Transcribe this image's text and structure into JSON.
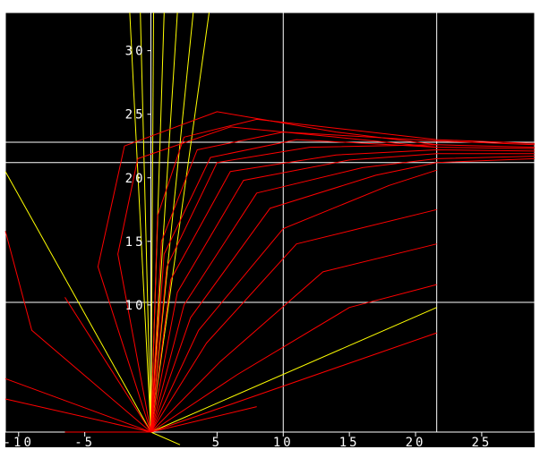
{
  "colors": {
    "background": "#000000",
    "grid": "#ffffff",
    "curves": "#ff0000",
    "lines": "#ffff00",
    "labels": "#ffffff"
  },
  "chart_data": {
    "type": "line",
    "title": "",
    "xlabel": "",
    "ylabel": "",
    "xlim": [
      -11,
      29
    ],
    "ylim": [
      0,
      33
    ],
    "grid": true,
    "legend": "none",
    "x_ticks": [
      -10,
      -5,
      5,
      10,
      15,
      20,
      25
    ],
    "y_ticks": [
      10,
      15,
      20,
      25,
      30
    ],
    "x_tick_labels": [
      "-10",
      "-5",
      "5",
      "10",
      "15",
      "20",
      "25"
    ],
    "y_tick_labels": [
      "10",
      "15",
      "20",
      "25",
      "30"
    ],
    "horizontal_reference_lines": [
      10.2,
      21.2,
      22.8
    ],
    "vertical_reference_lines": [
      10,
      21.6
    ],
    "series": [
      {
        "color": "#ffff00",
        "style": "straight rays from origin",
        "points": [
          [
            [
              0,
              0
            ],
            [
              -11,
              20.5
            ]
          ],
          [
            [
              0,
              0
            ],
            [
              21.6,
              9.8
            ]
          ],
          [
            [
              0,
              0
            ],
            [
              -1.6,
              33
            ]
          ],
          [
            [
              0,
              0
            ],
            [
              -0.8,
              33
            ]
          ],
          [
            [
              0,
              0
            ],
            [
              0.2,
              33
            ]
          ],
          [
            [
              0,
              0
            ],
            [
              1.0,
              33
            ]
          ],
          [
            [
              0,
              0
            ],
            [
              2.0,
              33
            ]
          ],
          [
            [
              0,
              0
            ],
            [
              3.2,
              33
            ]
          ],
          [
            [
              0,
              0
            ],
            [
              4.4,
              33
            ]
          ],
          [
            [
              0,
              0
            ],
            [
              2.2,
              -1
            ]
          ]
        ]
      },
      {
        "color": "#ff0000",
        "style": "trajectory bundle converging near y = 22",
        "points": [
          [
            [
              0,
              0
            ],
            [
              1.5,
              12
            ],
            [
              6,
              20.5
            ],
            [
              14,
              21.8
            ],
            [
              21.6,
              22.2
            ],
            [
              29,
              22.1
            ]
          ],
          [
            [
              0,
              0
            ],
            [
              1.2,
              13
            ],
            [
              5,
              21.2
            ],
            [
              12,
              22.4
            ],
            [
              21.6,
              22.6
            ],
            [
              29,
              22.4
            ]
          ],
          [
            [
              0,
              0
            ],
            [
              2.0,
              11
            ],
            [
              7,
              19.8
            ],
            [
              15,
              21.4
            ],
            [
              21.6,
              21.9
            ],
            [
              29,
              21.9
            ]
          ],
          [
            [
              0,
              0
            ],
            [
              0.8,
              15
            ],
            [
              3.5,
              22.2
            ],
            [
              10,
              23.6
            ],
            [
              21.6,
              22.9
            ],
            [
              29,
              22.6
            ]
          ],
          [
            [
              0,
              0
            ],
            [
              2.5,
              10
            ],
            [
              8,
              18.8
            ],
            [
              16,
              20.8
            ],
            [
              21.6,
              21.5
            ],
            [
              29,
              21.7
            ]
          ],
          [
            [
              0,
              0
            ],
            [
              0.5,
              17
            ],
            [
              2.5,
              23.2
            ],
            [
              8,
              24.6
            ],
            [
              21.6,
              23.0
            ],
            [
              29,
              22.7
            ]
          ],
          [
            [
              0,
              0
            ],
            [
              3.0,
              9
            ],
            [
              9,
              17.6
            ],
            [
              17,
              20.2
            ],
            [
              21.6,
              21.2
            ],
            [
              29,
              21.5
            ]
          ],
          [
            [
              0,
              0
            ],
            [
              1.0,
              14
            ],
            [
              4.5,
              21.6
            ],
            [
              11,
              23.0
            ],
            [
              21.6,
              22.4
            ],
            [
              29,
              22.3
            ]
          ],
          [
            [
              0,
              0
            ],
            [
              -2.5,
              14
            ],
            [
              -1,
              21.5
            ],
            [
              6,
              24.0
            ],
            [
              14,
              23.2
            ],
            [
              21.6,
              22.4
            ]
          ],
          [
            [
              0,
              0
            ],
            [
              -4.0,
              13
            ],
            [
              -2,
              22.5
            ],
            [
              5,
              25.2
            ],
            [
              14,
              23.6
            ],
            [
              21.6,
              22.6
            ]
          ],
          [
            [
              0,
              0
            ],
            [
              3.6,
              8
            ],
            [
              10,
              16
            ],
            [
              18,
              19.4
            ],
            [
              21.6,
              20.6
            ]
          ],
          [
            [
              0,
              0
            ],
            [
              4.2,
              7
            ],
            [
              11,
              14.8
            ],
            [
              21.6,
              17.5
            ]
          ],
          [
            [
              0,
              0
            ],
            [
              5.2,
              5.5
            ],
            [
              13,
              12.6
            ],
            [
              21.6,
              14.8
            ]
          ],
          [
            [
              0,
              0
            ],
            [
              6.5,
              4.5
            ],
            [
              15,
              9.8
            ],
            [
              21.6,
              11.6
            ]
          ],
          [
            [
              0,
              0
            ],
            [
              -9,
              8
            ],
            [
              -11,
              15.8
            ]
          ],
          [
            [
              0,
              0
            ],
            [
              -11,
              4.2
            ]
          ],
          [
            [
              0,
              0
            ],
            [
              -11,
              2.6
            ]
          ],
          [
            [
              0,
              0
            ],
            [
              -6.5,
              10.6
            ]
          ],
          [
            [
              0,
              0
            ],
            [
              21.6,
              7.8
            ]
          ],
          [
            [
              0,
              0
            ],
            [
              -6.5,
              0
            ]
          ],
          [
            [
              0,
              0
            ],
            [
              8,
              2.0
            ]
          ]
        ]
      }
    ]
  }
}
